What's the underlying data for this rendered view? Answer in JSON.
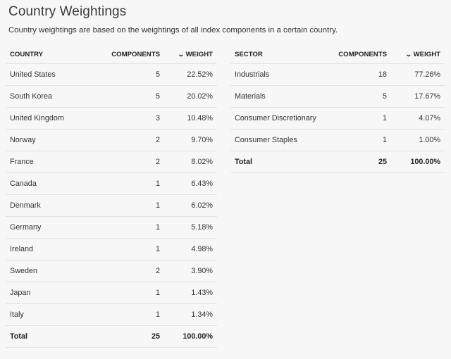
{
  "page": {
    "title": "Country Weightings",
    "description": "Country weightings are based on the weightings of all index components in a certain country."
  },
  "country_table": {
    "headers": {
      "country": "COUNTRY",
      "components": "COMPONENTS",
      "weight": "WEIGHT"
    },
    "rows": [
      {
        "name": "United States",
        "components": "5",
        "weight": "22.52%"
      },
      {
        "name": "South Korea",
        "components": "5",
        "weight": "20.02%"
      },
      {
        "name": "United Kingdom",
        "components": "3",
        "weight": "10.48%"
      },
      {
        "name": "Norway",
        "components": "2",
        "weight": "9.70%"
      },
      {
        "name": "France",
        "components": "2",
        "weight": "8.02%"
      },
      {
        "name": "Canada",
        "components": "1",
        "weight": "6.43%"
      },
      {
        "name": "Denmark",
        "components": "1",
        "weight": "6.02%"
      },
      {
        "name": "Germany",
        "components": "1",
        "weight": "5.18%"
      },
      {
        "name": "Ireland",
        "components": "1",
        "weight": "4.98%"
      },
      {
        "name": "Sweden",
        "components": "2",
        "weight": "3.90%"
      },
      {
        "name": "Japan",
        "components": "1",
        "weight": "1.43%"
      },
      {
        "name": "Italy",
        "components": "1",
        "weight": "1.34%"
      }
    ],
    "total": {
      "name": "Total",
      "components": "25",
      "weight": "100.00%"
    }
  },
  "sector_table": {
    "headers": {
      "sector": "SECTOR",
      "components": "COMPONENTS",
      "weight": "WEIGHT"
    },
    "rows": [
      {
        "name": "Industrials",
        "components": "18",
        "weight": "77.26%"
      },
      {
        "name": "Materials",
        "components": "5",
        "weight": "17.67%"
      },
      {
        "name": "Consumer Discretionary",
        "components": "1",
        "weight": "4.07%"
      },
      {
        "name": "Consumer Staples",
        "components": "1",
        "weight": "1.00%"
      }
    ],
    "total": {
      "name": "Total",
      "components": "25",
      "weight": "100.00%"
    }
  },
  "icons": {
    "sort": "chevron-down-icon"
  }
}
